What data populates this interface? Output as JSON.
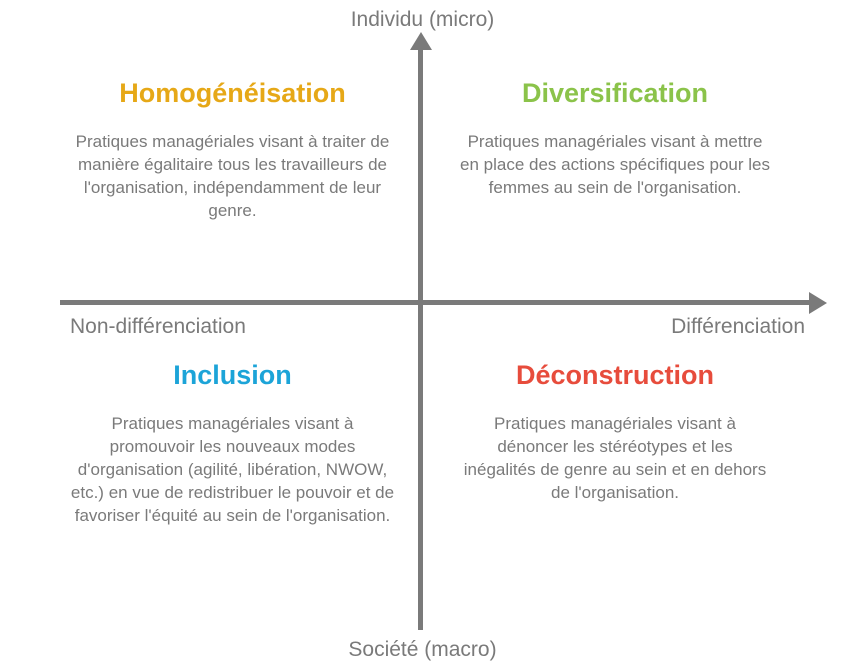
{
  "diagram": {
    "type": "quadrant-matrix",
    "background_color": "#ffffff",
    "axis": {
      "color": "#7a7a7a",
      "thickness": 5,
      "labels": {
        "top": "Individu (micro)",
        "bottom": "Société (macro)",
        "left": "Non-différenciation",
        "right": "Différenciation",
        "font_size": 21,
        "font_color": "#7a7a7a"
      }
    },
    "quadrants": {
      "top_left": {
        "title": "Homogénéisation",
        "title_color": "#e6a817",
        "description": "Pratiques managériales visant à traiter de manière égalitaire tous les travailleurs de l'organisation, indépendamment de leur genre."
      },
      "top_right": {
        "title": "Diversification",
        "title_color": "#8bc34a",
        "description": "Pratiques managériales visant à mettre en place des actions spécifiques pour les femmes au sein de l'organisation."
      },
      "bottom_left": {
        "title": "Inclusion",
        "title_color": "#1ca4d8",
        "description": "Pratiques managériales visant à promouvoir les nouveaux modes d'organisation (agilité, libération, NWOW, etc.) en vue de redistribuer le pouvoir et de favoriser l'équité au sein de l'organisation."
      },
      "bottom_right": {
        "title": "Déconstruction",
        "title_color": "#e74c3c",
        "description": "Pratiques managériales visant à dénoncer les stéréotypes et les inégalités de genre au sein et en dehors de l'organisation."
      }
    },
    "typography": {
      "title_font_size": 27,
      "title_font_weight": 700,
      "desc_font_size": 17,
      "desc_color": "#7a7a7a"
    }
  }
}
